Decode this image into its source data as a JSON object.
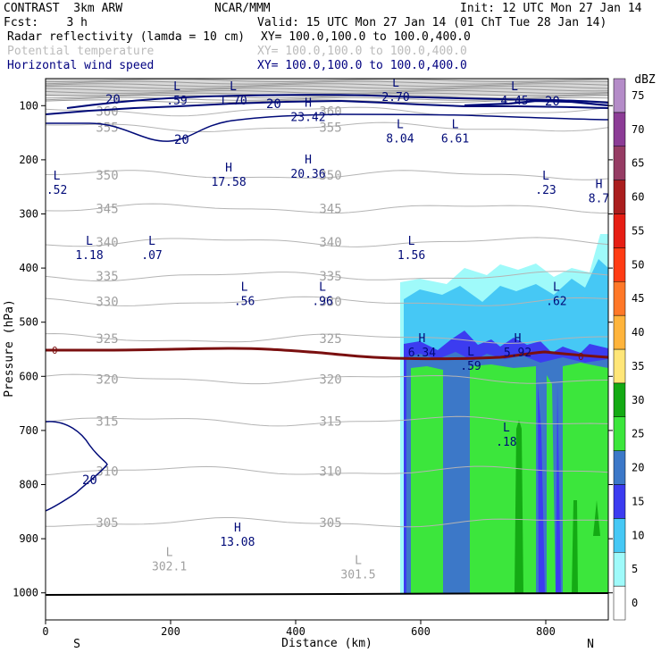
{
  "header": {
    "left1": "CONTRAST  3km ARW",
    "center1": "NCAR/MMM",
    "right1": "Init: 12 UTC Mon 27 Jan 14",
    "left2": "Fcst:    3 h",
    "right2": "Valid: 15 UTC Mon 27 Jan 14 (01 ChT Tue 28 Jan 14)",
    "fields": [
      {
        "name": "Radar reflectivity (lamda = 10 cm)",
        "xy": "XY= 100.0,100.0 to 100.0,400.0",
        "color": "#000000"
      },
      {
        "name": "Potential temperature",
        "xy": "XY= 100.0,100.0 to 100.0,400.0",
        "color": "#bbbbbb"
      },
      {
        "name": "Horizontal wind speed",
        "xy": "XY= 100.0,100.0 to 100.0,400.0",
        "color": "#000080"
      }
    ]
  },
  "chart_data": {
    "type": "cross-section",
    "xlabel": "Distance (km)",
    "ylabel": "Pressure (hPa)",
    "xlim": [
      0,
      900
    ],
    "ylim": [
      1050,
      50
    ],
    "x_ticks": [
      0,
      200,
      400,
      600,
      800
    ],
    "y_ticks": [
      100,
      200,
      300,
      400,
      500,
      600,
      700,
      800,
      900,
      1000
    ],
    "x_end_labels": {
      "left": "S",
      "right": "N"
    },
    "colorbar": {
      "unit": "dBZ",
      "levels": [
        0,
        5,
        10,
        15,
        20,
        25,
        30,
        35,
        40,
        45,
        50,
        55,
        60,
        65,
        70,
        75
      ],
      "colors": [
        "#ffffff",
        "#9ffafa",
        "#46c8f5",
        "#3c3cf0",
        "#3c78c8",
        "#3ce63c",
        "#14aa14",
        "#ffe678",
        "#ffb43c",
        "#ff7828",
        "#ff3c14",
        "#e61e14",
        "#aa1e1e",
        "#963c64",
        "#8c3c96",
        "#b48cc8"
      ]
    },
    "theta_levels": [
      {
        "value": 305,
        "pressure": 870
      },
      {
        "value": 310,
        "pressure": 775
      },
      {
        "value": 315,
        "pressure": 683
      },
      {
        "value": 320,
        "pressure": 605
      },
      {
        "value": 325,
        "pressure": 530
      },
      {
        "value": 330,
        "pressure": 462
      },
      {
        "value": 335,
        "pressure": 415
      },
      {
        "value": 340,
        "pressure": 352
      },
      {
        "value": 345,
        "pressure": 290
      },
      {
        "value": 350,
        "pressure": 228
      },
      {
        "value": 355,
        "pressure": 140
      },
      {
        "value": 360,
        "pressure": 110
      }
    ],
    "theta_labels": [
      "305",
      "310",
      "315",
      "320",
      "325",
      "330",
      "335",
      "340",
      "345",
      "350",
      "355",
      "360"
    ],
    "freezing_label": "0",
    "wind_label": "20",
    "extrema": [
      {
        "kind": "L",
        "value": ".59",
        "x": 210,
        "p": 85
      },
      {
        "kind": "L",
        "value": "1.70",
        "x": 300,
        "p": 85
      },
      {
        "kind": "L",
        "value": "2.70",
        "x": 560,
        "p": 78
      },
      {
        "kind": "L",
        "value": "4.45",
        "x": 750,
        "p": 85
      },
      {
        "kind": "H",
        "value": "23.42",
        "x": 420,
        "p": 115
      },
      {
        "kind": "L",
        "value": "8.04",
        "x": 567,
        "p": 155
      },
      {
        "kind": "L",
        "value": "6.61",
        "x": 655,
        "p": 155
      },
      {
        "kind": "H",
        "value": "20.36",
        "x": 420,
        "p": 220
      },
      {
        "kind": "H",
        "value": "17.58",
        "x": 293,
        "p": 235
      },
      {
        "kind": "L",
        "value": ".52",
        "x": 18,
        "p": 250
      },
      {
        "kind": "L",
        "value": ".23",
        "x": 800,
        "p": 250
      },
      {
        "kind": "H",
        "value": "8.7",
        "x": 885,
        "p": 265
      },
      {
        "kind": "L",
        "value": "1.18",
        "x": 70,
        "p": 370
      },
      {
        "kind": "L",
        "value": ".07",
        "x": 170,
        "p": 370
      },
      {
        "kind": "L",
        "value": "1.56",
        "x": 585,
        "p": 370
      },
      {
        "kind": "L",
        "value": ".56",
        "x": 318,
        "p": 455
      },
      {
        "kind": "L",
        "value": ".96",
        "x": 443,
        "p": 455
      },
      {
        "kind": "L",
        "value": ".62",
        "x": 817,
        "p": 455
      },
      {
        "kind": "H",
        "value": "6.34",
        "x": 602,
        "p": 550
      },
      {
        "kind": "H",
        "value": "5.92",
        "x": 755,
        "p": 550
      },
      {
        "kind": "L",
        "value": ".59",
        "x": 680,
        "p": 575
      },
      {
        "kind": "L",
        "value": ".18",
        "x": 737,
        "p": 715
      },
      {
        "kind": "H",
        "value": "13.08",
        "x": 307,
        "p": 900
      },
      {
        "kind": "L",
        "value": "302.1",
        "x": 198,
        "p": 945
      },
      {
        "kind": "L",
        "value": "301.5",
        "x": 500,
        "p": 960
      }
    ]
  }
}
